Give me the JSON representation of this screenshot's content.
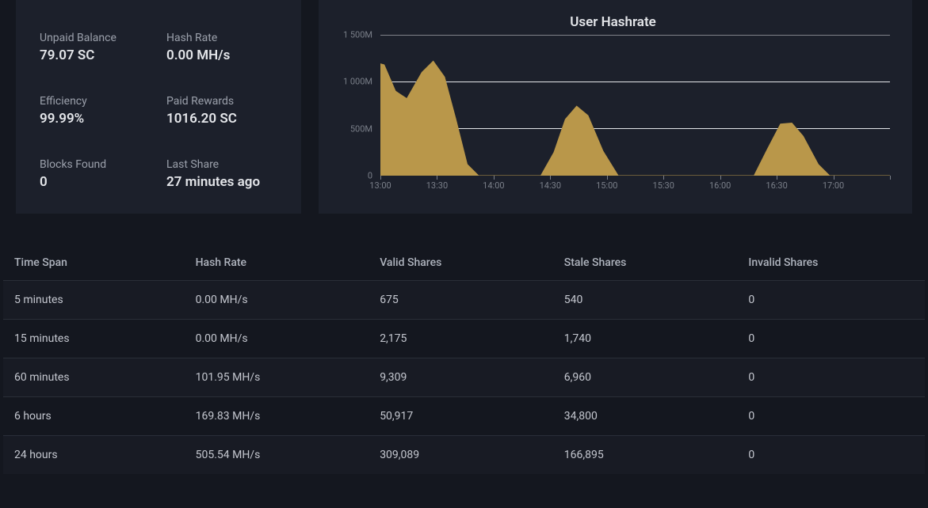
{
  "stats": {
    "unpaid_balance": {
      "label": "Unpaid Balance",
      "value": "79.07 SC"
    },
    "hash_rate": {
      "label": "Hash Rate",
      "value": "0.00 MH/s"
    },
    "efficiency": {
      "label": "Efficiency",
      "value": "99.99%"
    },
    "paid_rewards": {
      "label": "Paid Rewards",
      "value": "1016.20 SC"
    },
    "blocks_found": {
      "label": "Blocks Found",
      "value": "0"
    },
    "last_share": {
      "label": "Last Share",
      "value": "27 minutes ago"
    }
  },
  "chart": {
    "title": "User Hashrate",
    "type": "area",
    "fill_color": "#b9974a",
    "stroke_color": "#b9974a",
    "grid_color": "#e4e6ea",
    "background_color": "#1c202b",
    "y": {
      "min": 0,
      "max": 1500,
      "ticks": [
        0,
        500,
        1000,
        1500
      ],
      "tick_labels": [
        "0",
        "500M",
        "1 000M",
        "1 500M"
      ],
      "label_fontsize": 11,
      "label_color": "#7a7f89"
    },
    "x": {
      "min": 0,
      "max": 270,
      "ticks": [
        0,
        30,
        60,
        90,
        120,
        150,
        180,
        210,
        240,
        270
      ],
      "tick_labels": [
        "13:00",
        "13:30",
        "14:00",
        "14:30",
        "15:00",
        "15:30",
        "16:00",
        "16:30",
        "17:00",
        " "
      ],
      "label_fontsize": 11,
      "label_color": "#7a7f89"
    },
    "series": [
      {
        "x": -18,
        "y": 0
      },
      {
        "x": -12,
        "y": 950
      },
      {
        "x": -5,
        "y": 1220
      },
      {
        "x": 2,
        "y": 1180
      },
      {
        "x": 8,
        "y": 900
      },
      {
        "x": 14,
        "y": 820
      },
      {
        "x": 22,
        "y": 1100
      },
      {
        "x": 28,
        "y": 1220
      },
      {
        "x": 34,
        "y": 1050
      },
      {
        "x": 40,
        "y": 600
      },
      {
        "x": 46,
        "y": 120
      },
      {
        "x": 52,
        "y": 0
      },
      {
        "x": 85,
        "y": 0
      },
      {
        "x": 92,
        "y": 250
      },
      {
        "x": 98,
        "y": 600
      },
      {
        "x": 104,
        "y": 740
      },
      {
        "x": 110,
        "y": 640
      },
      {
        "x": 118,
        "y": 260
      },
      {
        "x": 126,
        "y": 0
      },
      {
        "x": 198,
        "y": 0
      },
      {
        "x": 205,
        "y": 280
      },
      {
        "x": 212,
        "y": 550
      },
      {
        "x": 218,
        "y": 560
      },
      {
        "x": 224,
        "y": 420
      },
      {
        "x": 232,
        "y": 120
      },
      {
        "x": 238,
        "y": 0
      },
      {
        "x": 270,
        "y": 0
      }
    ]
  },
  "table": {
    "columns": [
      "Time Span",
      "Hash Rate",
      "Valid Shares",
      "Stale Shares",
      "Invalid Shares"
    ],
    "rows": [
      [
        "5 minutes",
        "0.00 MH/s",
        "675",
        "540",
        "0"
      ],
      [
        "15 minutes",
        "0.00 MH/s",
        "2,175",
        "1,740",
        "0"
      ],
      [
        "60 minutes",
        "101.95 MH/s",
        "9,309",
        "6,960",
        "0"
      ],
      [
        "6 hours",
        "169.83 MH/s",
        "50,917",
        "34,800",
        "0"
      ],
      [
        "24 hours",
        "505.54 MH/s",
        "309,089",
        "166,895",
        "0"
      ]
    ]
  }
}
